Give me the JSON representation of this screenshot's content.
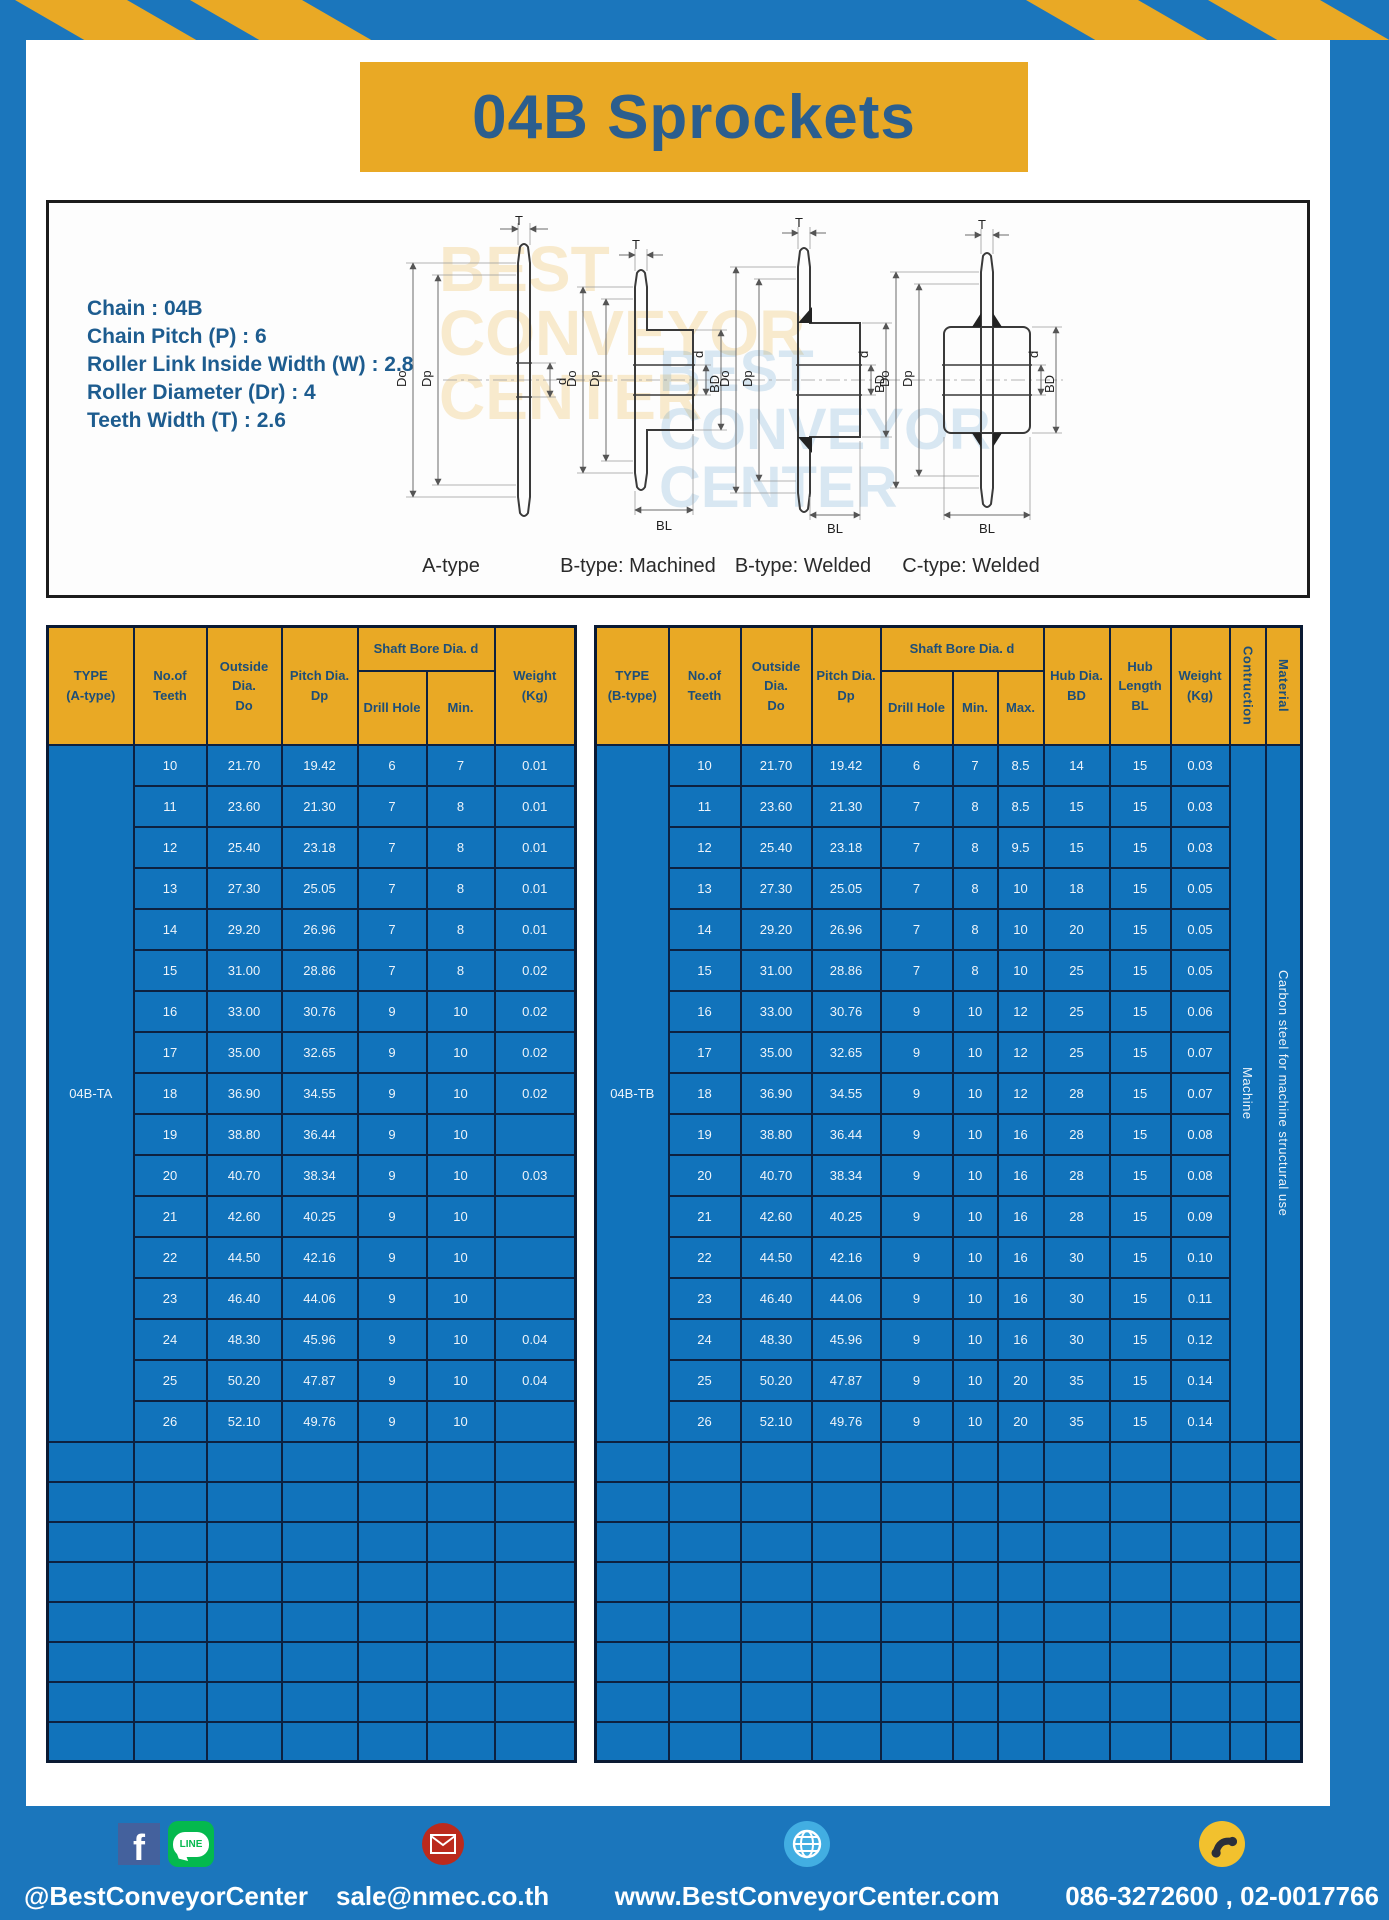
{
  "page_title": "04B Sprockets",
  "specs": {
    "line1": "Chain : 04B",
    "line2": "Chain Pitch (P) : 6",
    "line3": "Roller Link Inside Width (W) : 2.8",
    "line4": "Roller Diameter (Dr) : 4",
    "line5": "Teeth Width (T) : 2.6"
  },
  "diagram": {
    "watermark": "BEST\nCONVEYOR\nCENTER",
    "dims": {
      "T": "T",
      "Do": "Do",
      "Dp": "Dp",
      "d": "d",
      "BD": "BD",
      "BL": "BL"
    },
    "type_labels": {
      "a": "A-type",
      "b_machined": "B-type: Machined",
      "b_welded": "B-type: Welded",
      "c_welded": "C-type: Welded"
    }
  },
  "table_a": {
    "headers": {
      "type": "TYPE\n(A-type)",
      "teeth": "No.of\nTeeth",
      "outside": "Outside\nDia.\nDo",
      "pitch": "Pitch Dia.\nDp",
      "shaft_bore": "Shaft Bore Dia. d",
      "drill": "Drill Hole",
      "min": "Min.",
      "weight": "Weight\n(Kg)"
    },
    "lead": "04B-TA",
    "rows": [
      [
        "10",
        "21.70",
        "19.42",
        "6",
        "7",
        "0.01"
      ],
      [
        "11",
        "23.60",
        "21.30",
        "7",
        "8",
        "0.01"
      ],
      [
        "12",
        "25.40",
        "23.18",
        "7",
        "8",
        "0.01"
      ],
      [
        "13",
        "27.30",
        "25.05",
        "7",
        "8",
        "0.01"
      ],
      [
        "14",
        "29.20",
        "26.96",
        "7",
        "8",
        "0.01"
      ],
      [
        "15",
        "31.00",
        "28.86",
        "7",
        "8",
        "0.02"
      ],
      [
        "16",
        "33.00",
        "30.76",
        "9",
        "10",
        "0.02"
      ],
      [
        "17",
        "35.00",
        "32.65",
        "9",
        "10",
        "0.02"
      ],
      [
        "18",
        "36.90",
        "34.55",
        "9",
        "10",
        "0.02"
      ],
      [
        "19",
        "38.80",
        "36.44",
        "9",
        "10",
        ""
      ],
      [
        "20",
        "40.70",
        "38.34",
        "9",
        "10",
        "0.03"
      ],
      [
        "21",
        "42.60",
        "40.25",
        "9",
        "10",
        ""
      ],
      [
        "22",
        "44.50",
        "42.16",
        "9",
        "10",
        ""
      ],
      [
        "23",
        "46.40",
        "44.06",
        "9",
        "10",
        ""
      ],
      [
        "24",
        "48.30",
        "45.96",
        "9",
        "10",
        "0.04"
      ],
      [
        "25",
        "50.20",
        "47.87",
        "9",
        "10",
        "0.04"
      ],
      [
        "26",
        "52.10",
        "49.76",
        "9",
        "10",
        ""
      ]
    ],
    "empty_rows": 8
  },
  "table_b": {
    "headers": {
      "type": "TYPE\n(B-type)",
      "teeth": "No.of\nTeeth",
      "outside": "Outside\nDia.\nDo",
      "pitch": "Pitch Dia.\nDp",
      "shaft_bore": "Shaft Bore Dia. d",
      "drill": "Drill Hole",
      "min": "Min.",
      "max": "Max.",
      "hub_dia": "Hub Dia.\nBD",
      "hub_length": "Hub\nLength\nBL",
      "weight": "Weight\n(Kg)",
      "construction": "Contruction",
      "material": "Material"
    },
    "lead": "04B-TB",
    "trail": [
      "Machine",
      "Carbon steel for machine structural use"
    ],
    "rows": [
      [
        "10",
        "21.70",
        "19.42",
        "6",
        "7",
        "8.5",
        "14",
        "15",
        "0.03"
      ],
      [
        "11",
        "23.60",
        "21.30",
        "7",
        "8",
        "8.5",
        "15",
        "15",
        "0.03"
      ],
      [
        "12",
        "25.40",
        "23.18",
        "7",
        "8",
        "9.5",
        "15",
        "15",
        "0.03"
      ],
      [
        "13",
        "27.30",
        "25.05",
        "7",
        "8",
        "10",
        "18",
        "15",
        "0.05"
      ],
      [
        "14",
        "29.20",
        "26.96",
        "7",
        "8",
        "10",
        "20",
        "15",
        "0.05"
      ],
      [
        "15",
        "31.00",
        "28.86",
        "7",
        "8",
        "10",
        "25",
        "15",
        "0.05"
      ],
      [
        "16",
        "33.00",
        "30.76",
        "9",
        "10",
        "12",
        "25",
        "15",
        "0.06"
      ],
      [
        "17",
        "35.00",
        "32.65",
        "9",
        "10",
        "12",
        "25",
        "15",
        "0.07"
      ],
      [
        "18",
        "36.90",
        "34.55",
        "9",
        "10",
        "12",
        "28",
        "15",
        "0.07"
      ],
      [
        "19",
        "38.80",
        "36.44",
        "9",
        "10",
        "16",
        "28",
        "15",
        "0.08"
      ],
      [
        "20",
        "40.70",
        "38.34",
        "9",
        "10",
        "16",
        "28",
        "15",
        "0.08"
      ],
      [
        "21",
        "42.60",
        "40.25",
        "9",
        "10",
        "16",
        "28",
        "15",
        "0.09"
      ],
      [
        "22",
        "44.50",
        "42.16",
        "9",
        "10",
        "16",
        "30",
        "15",
        "0.10"
      ],
      [
        "23",
        "46.40",
        "44.06",
        "9",
        "10",
        "16",
        "30",
        "15",
        "0.11"
      ],
      [
        "24",
        "48.30",
        "45.96",
        "9",
        "10",
        "16",
        "30",
        "15",
        "0.12"
      ],
      [
        "25",
        "50.20",
        "47.87",
        "9",
        "10",
        "20",
        "35",
        "15",
        "0.14"
      ],
      [
        "26",
        "52.10",
        "49.76",
        "9",
        "10",
        "20",
        "35",
        "15",
        "0.14"
      ]
    ],
    "empty_rows": 8
  },
  "footer": {
    "social_handle": "@BestConveyorCenter",
    "line_label": "LINE",
    "facebook_letter": "f",
    "email": "sale@nmec.co.th",
    "website": "www.BestConveyorCenter.com",
    "phones": "086-3272600 , 02-0017766"
  },
  "colors": {
    "frame_blue": "#1b76bc",
    "accent_yellow": "#e9a925",
    "cell_blue": "#1173bb",
    "border_navy": "#0d2140",
    "header_text": "#1d4e78",
    "title_text": "#2b5e8e"
  }
}
